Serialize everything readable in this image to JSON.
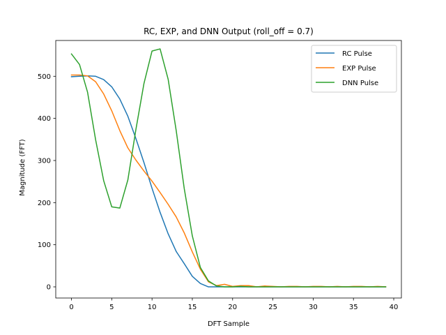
{
  "chart_data": {
    "type": "line",
    "title": "RC, EXP, and DNN Output (roll_off = 0.7)",
    "xlabel": "DFT Sample",
    "ylabel": "Magnitude (FFT)",
    "xlim": [
      -1.95,
      40.95
    ],
    "ylim": [
      -26.5,
      585
    ],
    "xticks": [
      0,
      5,
      10,
      15,
      20,
      25,
      30,
      35,
      40
    ],
    "yticks": [
      0,
      100,
      200,
      300,
      400,
      500
    ],
    "grid": false,
    "legend_position": "top-right",
    "x": [
      0,
      1,
      2,
      3,
      4,
      5,
      6,
      7,
      8,
      9,
      10,
      11,
      12,
      13,
      14,
      15,
      16,
      17,
      18,
      19,
      20,
      21,
      22,
      23,
      24,
      25,
      26,
      27,
      28,
      29,
      30,
      31,
      32,
      33,
      34,
      35,
      36,
      37,
      38,
      39
    ],
    "series": [
      {
        "name": "RC Pulse",
        "color": "#1f77b4",
        "values": [
          499,
          500,
          501,
          500,
          492,
          475,
          446,
          405,
          352,
          295,
          234,
          177,
          126,
          84,
          55,
          25,
          8,
          0,
          0,
          0,
          0,
          0,
          0,
          0,
          0,
          0,
          0,
          0,
          0,
          0,
          0,
          0,
          0,
          0,
          0,
          0,
          0,
          0,
          0,
          0
        ]
      },
      {
        "name": "EXP Pulse",
        "color": "#ff7f0e",
        "values": [
          503,
          503,
          501,
          487,
          458,
          418,
          371,
          330,
          301,
          275,
          251,
          224,
          196,
          166,
          128,
          83,
          42,
          12,
          3,
          6,
          1,
          3,
          3,
          0,
          2,
          1,
          0,
          1,
          1,
          0,
          1,
          1,
          0,
          1,
          0,
          1,
          1,
          0,
          1,
          0
        ]
      },
      {
        "name": "DNN Pulse",
        "color": "#2ca02c",
        "values": [
          553,
          528,
          462,
          349,
          252,
          190,
          187,
          254,
          374,
          483,
          560,
          565,
          493,
          371,
          233,
          121,
          46,
          14,
          2,
          0,
          0,
          1,
          0,
          0,
          0,
          0,
          0,
          0,
          0,
          0,
          0,
          0,
          0,
          0,
          0,
          0,
          0,
          0,
          0,
          0
        ]
      }
    ]
  }
}
